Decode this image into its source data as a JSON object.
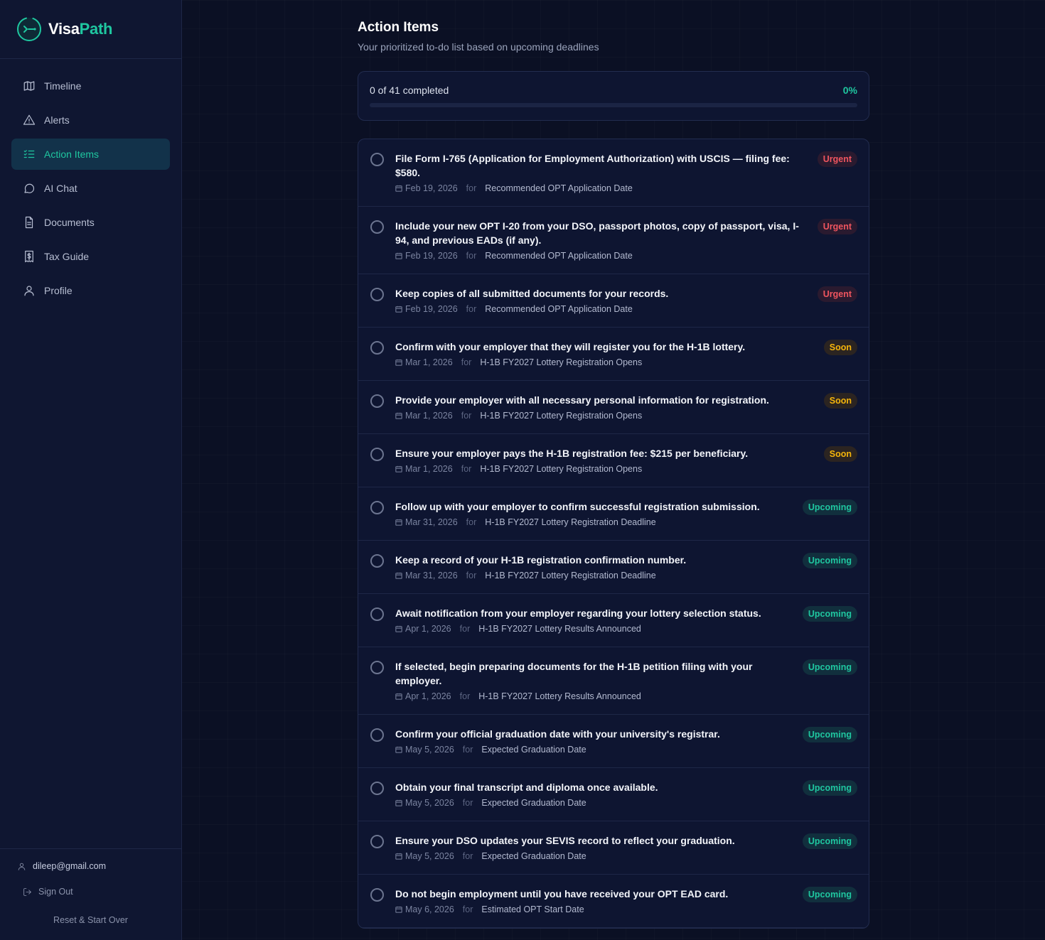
{
  "app": {
    "brand_prefix": "Visa",
    "brand_suffix": "Path",
    "accent": "#1fc7a0"
  },
  "sidebar": {
    "items": [
      {
        "label": "Timeline",
        "icon": "map-icon",
        "active": false
      },
      {
        "label": "Alerts",
        "icon": "alert-triangle-icon",
        "active": false
      },
      {
        "label": "Action Items",
        "icon": "list-checks-icon",
        "active": true
      },
      {
        "label": "AI Chat",
        "icon": "chat-bubble-icon",
        "active": false
      },
      {
        "label": "Documents",
        "icon": "document-icon",
        "active": false
      },
      {
        "label": "Tax Guide",
        "icon": "receipt-dollar-icon",
        "active": false
      },
      {
        "label": "Profile",
        "icon": "user-icon",
        "active": false
      }
    ],
    "user_email": "dileep@gmail.com",
    "sign_out": "Sign Out",
    "reset": "Reset & Start Over"
  },
  "main": {
    "title": "Action Items",
    "subtitle": "Your prioritized to-do list based on upcoming deadlines",
    "progress": {
      "label": "0 of 41 completed",
      "percent_label": "0%",
      "fraction": 0
    },
    "for_label": "for",
    "items": [
      {
        "title": "File Form I-765 (Application for Employment Authorization) with USCIS — filing fee: $580.",
        "date": "Feb 19, 2026",
        "event": "Recommended OPT Application Date",
        "badge": "Urgent",
        "level": "urgent",
        "tall": true
      },
      {
        "title": "Include your new OPT I-20 from your DSO, passport photos, copy of passport, visa, I-94, and previous EADs (if any).",
        "date": "Feb 19, 2026",
        "event": "Recommended OPT Application Date",
        "badge": "Urgent",
        "level": "urgent",
        "tall": true
      },
      {
        "title": "Keep copies of all submitted documents for your records.",
        "date": "Feb 19, 2026",
        "event": "Recommended OPT Application Date",
        "badge": "Urgent",
        "level": "urgent",
        "tall": false
      },
      {
        "title": "Confirm with your employer that they will register you for the H-1B lottery.",
        "date": "Mar 1, 2026",
        "event": "H-1B FY2027 Lottery Registration Opens",
        "badge": "Soon",
        "level": "soon",
        "tall": false
      },
      {
        "title": "Provide your employer with all necessary personal information for registration.",
        "date": "Mar 1, 2026",
        "event": "H-1B FY2027 Lottery Registration Opens",
        "badge": "Soon",
        "level": "soon",
        "tall": false
      },
      {
        "title": "Ensure your employer pays the H-1B registration fee: $215 per beneficiary.",
        "date": "Mar 1, 2026",
        "event": "H-1B FY2027 Lottery Registration Opens",
        "badge": "Soon",
        "level": "soon",
        "tall": false
      },
      {
        "title": "Follow up with your employer to confirm successful registration submission.",
        "date": "Mar 31, 2026",
        "event": "H-1B FY2027 Lottery Registration Deadline",
        "badge": "Upcoming",
        "level": "upcoming",
        "tall": false
      },
      {
        "title": "Keep a record of your H-1B registration confirmation number.",
        "date": "Mar 31, 2026",
        "event": "H-1B FY2027 Lottery Registration Deadline",
        "badge": "Upcoming",
        "level": "upcoming",
        "tall": false
      },
      {
        "title": "Await notification from your employer regarding your lottery selection status.",
        "date": "Apr 1, 2026",
        "event": "H-1B FY2027 Lottery Results Announced",
        "badge": "Upcoming",
        "level": "upcoming",
        "tall": false
      },
      {
        "title": "If selected, begin preparing documents for the H-1B petition filing with your employer.",
        "date": "Apr 1, 2026",
        "event": "H-1B FY2027 Lottery Results Announced",
        "badge": "Upcoming",
        "level": "upcoming",
        "tall": true
      },
      {
        "title": "Confirm your official graduation date with your university's registrar.",
        "date": "May 5, 2026",
        "event": "Expected Graduation Date",
        "badge": "Upcoming",
        "level": "upcoming",
        "tall": false
      },
      {
        "title": "Obtain your final transcript and diploma once available.",
        "date": "May 5, 2026",
        "event": "Expected Graduation Date",
        "badge": "Upcoming",
        "level": "upcoming",
        "tall": false
      },
      {
        "title": "Ensure your DSO updates your SEVIS record to reflect your graduation.",
        "date": "May 5, 2026",
        "event": "Expected Graduation Date",
        "badge": "Upcoming",
        "level": "upcoming",
        "tall": false
      },
      {
        "title": "Do not begin employment until you have received your OPT EAD card.",
        "date": "May 6, 2026",
        "event": "Estimated OPT Start Date",
        "badge": "Upcoming",
        "level": "upcoming",
        "tall": false
      }
    ]
  }
}
